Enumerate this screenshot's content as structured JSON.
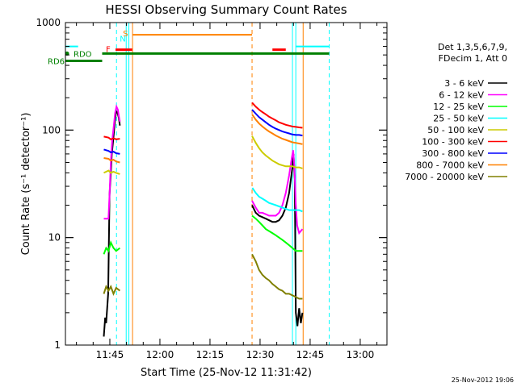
{
  "chart_data": {
    "type": "line",
    "title": "HESSI Observing Summary Count Rates",
    "xlabel": "Start Time (25-Nov-12 11:31:42)",
    "ylabel": "Count Rate (s⁻¹ detector⁻¹)",
    "y_scale": "log",
    "ylim": [
      1,
      1000
    ],
    "xlim": [
      "11:31:42",
      "13:08:00"
    ],
    "x_tick_labels": [
      "11:45",
      "12:00",
      "12:15",
      "12:30",
      "12:45",
      "13:00"
    ],
    "x_tick_minutes": [
      705,
      720,
      735,
      750,
      765,
      780
    ],
    "y_tick_labels": [
      "1",
      "10",
      "100",
      "1000"
    ],
    "y_tick_values": [
      1,
      10,
      100,
      1000
    ],
    "legend_header": [
      "Det 1,3,5,6,7,9,",
      "FDecim 1, Att 0"
    ],
    "legend_placement": "right",
    "series": [
      {
        "name": "3 - 6 keV",
        "color": "#000000",
        "segments": [
          [
            [
              11.5,
              1.2
            ],
            [
              11.9,
              1.8
            ],
            [
              12.2,
              1.6
            ],
            [
              12.8,
              3
            ],
            [
              13.2,
              25
            ],
            [
              13.6,
              40
            ],
            [
              13.9,
              60
            ],
            [
              14.3,
              80
            ],
            [
              14.8,
              120
            ],
            [
              15.2,
              150
            ],
            [
              15.6,
              145
            ],
            [
              16,
              130
            ],
            [
              16.3,
              110
            ]
          ],
          [
            [
              55.9,
              20
            ],
            [
              57,
              17
            ],
            [
              58,
              16
            ],
            [
              59,
              15.5
            ],
            [
              60,
              15
            ],
            [
              61,
              14.5
            ],
            [
              62,
              14
            ],
            [
              63,
              14
            ],
            [
              64,
              14.5
            ],
            [
              65,
              16
            ],
            [
              66,
              19
            ],
            [
              67,
              26
            ],
            [
              68,
              45
            ],
            [
              68.3,
              60
            ],
            [
              68.7,
              35
            ],
            [
              69,
              2
            ],
            [
              69.5,
              1.5
            ],
            [
              70,
              2.2
            ],
            [
              70.5,
              1.6
            ],
            [
              71,
              2
            ]
          ]
        ]
      },
      {
        "name": "6 - 12 keV",
        "color": "#ff00ff",
        "segments": [
          [
            [
              11.5,
              15
            ],
            [
              12.9,
              15
            ],
            [
              13.2,
              25
            ],
            [
              13.6,
              50
            ],
            [
              14,
              80
            ],
            [
              14.5,
              110
            ],
            [
              14.9,
              145
            ],
            [
              15.3,
              165
            ],
            [
              15.7,
              155
            ],
            [
              16,
              135
            ],
            [
              16.3,
              120
            ]
          ],
          [
            [
              55.9,
              22
            ],
            [
              57,
              19
            ],
            [
              58,
              17
            ],
            [
              59,
              17
            ],
            [
              60,
              16.5
            ],
            [
              61,
              16
            ],
            [
              62,
              16
            ],
            [
              63,
              16
            ],
            [
              64,
              17
            ],
            [
              65,
              20
            ],
            [
              66,
              26
            ],
            [
              67,
              38
            ],
            [
              67.8,
              55
            ],
            [
              68.2,
              65
            ],
            [
              68.6,
              45
            ],
            [
              69,
              20
            ],
            [
              69.4,
              13
            ],
            [
              70,
              11
            ],
            [
              71,
              12
            ]
          ]
        ]
      },
      {
        "name": "12 - 25 keV",
        "color": "#00ff00",
        "segments": [
          [
            [
              11.5,
              7
            ],
            [
              12.2,
              8
            ],
            [
              12.9,
              7.5
            ],
            [
              13.6,
              9
            ],
            [
              14.4,
              8
            ],
            [
              15.2,
              7.5
            ],
            [
              16.3,
              8
            ]
          ],
          [
            [
              55.9,
              16
            ],
            [
              57,
              15
            ],
            [
              58,
              14
            ],
            [
              59,
              13
            ],
            [
              60,
              12
            ],
            [
              61,
              11.5
            ],
            [
              62,
              11
            ],
            [
              63,
              10.5
            ],
            [
              64,
              10
            ],
            [
              65,
              9.5
            ],
            [
              66,
              9
            ],
            [
              67,
              8.5
            ],
            [
              68,
              8
            ],
            [
              69,
              7.5
            ],
            [
              70,
              7.5
            ],
            [
              71,
              7.5
            ]
          ]
        ]
      },
      {
        "name": "25 - 50 keV",
        "color": "#00ffff",
        "segments": [
          [
            [
              0,
              600
            ],
            [
              3.8,
              600
            ]
          ],
          [
            [
              56,
              29
            ],
            [
              57,
              26
            ],
            [
              58,
              24
            ],
            [
              59,
              23
            ],
            [
              60,
              22
            ],
            [
              61,
              21
            ],
            [
              62,
              20.5
            ],
            [
              63,
              20
            ],
            [
              64,
              19.5
            ],
            [
              65,
              19
            ],
            [
              66,
              18.5
            ],
            [
              67,
              18
            ],
            [
              68,
              18
            ],
            [
              69,
              18
            ],
            [
              70,
              18
            ],
            [
              71,
              17.5
            ]
          ],
          [
            [
              69,
              600
            ],
            [
              72,
              600
            ],
            [
              75,
              600
            ],
            [
              79,
              600
            ]
          ]
        ]
      },
      {
        "name": "50 - 100 keV",
        "color": "#cccc00",
        "segments": [
          [
            [
              11.5,
              40
            ],
            [
              12.9,
              42
            ],
            [
              13.6,
              40
            ],
            [
              14.4,
              41
            ],
            [
              15.2,
              40
            ],
            [
              16.3,
              39
            ]
          ],
          [
            [
              55.9,
              88
            ],
            [
              57,
              76
            ],
            [
              58,
              68
            ],
            [
              59,
              62
            ],
            [
              60,
              58
            ],
            [
              61,
              55
            ],
            [
              62,
              52
            ],
            [
              63,
              50
            ],
            [
              64,
              48
            ],
            [
              65,
              47
            ],
            [
              66,
              46
            ],
            [
              67,
              46
            ],
            [
              68,
              46
            ],
            [
              69,
              45
            ],
            [
              70,
              45
            ],
            [
              71,
              44
            ]
          ]
        ]
      },
      {
        "name": "100 - 300 keV",
        "color": "#ff0000",
        "segments": [
          [
            [
              11.5,
              87
            ],
            [
              12.9,
              85
            ],
            [
              13.6,
              82
            ],
            [
              14.4,
              84
            ],
            [
              15.2,
              82
            ],
            [
              16.3,
              83
            ]
          ],
          [
            [
              55.9,
              180
            ],
            [
              57,
              165
            ],
            [
              58,
              155
            ],
            [
              59,
              147
            ],
            [
              60,
              140
            ],
            [
              61,
              133
            ],
            [
              62,
              128
            ],
            [
              63,
              123
            ],
            [
              64,
              118
            ],
            [
              65,
              115
            ],
            [
              66,
              112
            ],
            [
              67,
              110
            ],
            [
              68,
              108
            ],
            [
              69,
              107
            ],
            [
              70,
              106
            ],
            [
              71,
              105
            ]
          ]
        ]
      },
      {
        "name": "300 - 800 keV",
        "color": "#0000ff",
        "segments": [
          [
            [
              11.5,
              66
            ],
            [
              12.9,
              64
            ],
            [
              13.6,
              62
            ],
            [
              14.4,
              63
            ],
            [
              15.2,
              61
            ],
            [
              16.3,
              60
            ]
          ],
          [
            [
              55.9,
              155
            ],
            [
              57,
              142
            ],
            [
              58,
              132
            ],
            [
              59,
              125
            ],
            [
              60,
              118
            ],
            [
              61,
              112
            ],
            [
              62,
              107
            ],
            [
              63,
              103
            ],
            [
              64,
              100
            ],
            [
              65,
              97
            ],
            [
              66,
              95
            ],
            [
              67,
              93
            ],
            [
              68,
              91
            ],
            [
              69,
              90
            ],
            [
              70,
              90
            ],
            [
              71,
              89
            ]
          ]
        ]
      },
      {
        "name": "800 - 7000 keV",
        "color": "#ff8000",
        "segments": [
          [
            [
              11.5,
              55
            ],
            [
              12.9,
              54
            ],
            [
              13.6,
              52
            ],
            [
              14.4,
              53
            ],
            [
              15.2,
              51
            ],
            [
              16.3,
              50
            ]
          ],
          [
            [
              55.9,
              140
            ],
            [
              57,
              125
            ],
            [
              58,
              115
            ],
            [
              59,
              108
            ],
            [
              60,
              102
            ],
            [
              61,
              97
            ],
            [
              62,
              93
            ],
            [
              63,
              89
            ],
            [
              64,
              86
            ],
            [
              65,
              83
            ],
            [
              66,
              81
            ],
            [
              67,
              79
            ],
            [
              68,
              77
            ],
            [
              69,
              76
            ],
            [
              70,
              75
            ],
            [
              71,
              74
            ]
          ],
          [
            [
              20.1,
              770
            ],
            [
              40,
              770
            ],
            [
              55.9,
              770
            ]
          ]
        ]
      },
      {
        "name": "7000 - 20000 keV",
        "color": "#808000",
        "segments": [
          [
            [
              11.5,
              3
            ],
            [
              12.2,
              3.5
            ],
            [
              12.9,
              3.2
            ],
            [
              13.6,
              3.5
            ],
            [
              14.4,
              3
            ],
            [
              15.2,
              3.4
            ],
            [
              16.3,
              3.2
            ]
          ],
          [
            [
              55.9,
              7
            ],
            [
              57,
              6
            ],
            [
              58,
              5
            ],
            [
              59,
              4.5
            ],
            [
              60,
              4.2
            ],
            [
              61,
              4
            ],
            [
              62,
              3.7
            ],
            [
              63,
              3.5
            ],
            [
              64,
              3.3
            ],
            [
              65,
              3.2
            ],
            [
              66,
              3
            ],
            [
              67,
              3
            ],
            [
              68,
              2.9
            ],
            [
              69,
              2.8
            ],
            [
              70,
              2.7
            ],
            [
              71,
              2.7
            ]
          ]
        ]
      }
    ],
    "flag_bars": [
      {
        "label": "RD6",
        "color": "#008000",
        "value": 440,
        "x": [
          0,
          11
        ]
      },
      {
        "label": "RDO",
        "color": "#008000",
        "value": 515,
        "x": [
          0,
          1
        ],
        "marker": "dot"
      },
      {
        "label": "",
        "color": "#008000",
        "value": 515,
        "x": [
          11,
          79
        ]
      },
      {
        "label": "F",
        "color": "#ff0000",
        "value": 560,
        "x": [
          15,
          20
        ]
      },
      {
        "label": "",
        "color": "#ff0000",
        "value": 560,
        "x": [
          62,
          66
        ]
      },
      {
        "label": "N",
        "color": "#00ffff",
        "value": 645,
        "x": [
          17,
          17
        ]
      },
      {
        "label": "S",
        "color": "#ff8000",
        "value": 770,
        "x": [
          20.1,
          20.1
        ]
      }
    ],
    "vertical_lines": [
      {
        "x": 15.3,
        "color": "#00ffff",
        "style": "dashed"
      },
      {
        "x": 18.2,
        "color": "#00ffff",
        "style": "solid"
      },
      {
        "x": 19.0,
        "color": "#00ffff",
        "style": "solid"
      },
      {
        "x": 20.1,
        "color": "#ff8000",
        "style": "solid"
      },
      {
        "x": 55.9,
        "color": "#ff8000",
        "style": "dashed"
      },
      {
        "x": 68.0,
        "color": "#00ffff",
        "style": "solid"
      },
      {
        "x": 69.0,
        "color": "#00ffff",
        "style": "solid"
      },
      {
        "x": 71.2,
        "color": "#ff8000",
        "style": "solid"
      },
      {
        "x": 79.0,
        "color": "#00ffff",
        "style": "dashed"
      }
    ],
    "grid": false
  },
  "footer_timestamp": "25-Nov-2012 19:06"
}
